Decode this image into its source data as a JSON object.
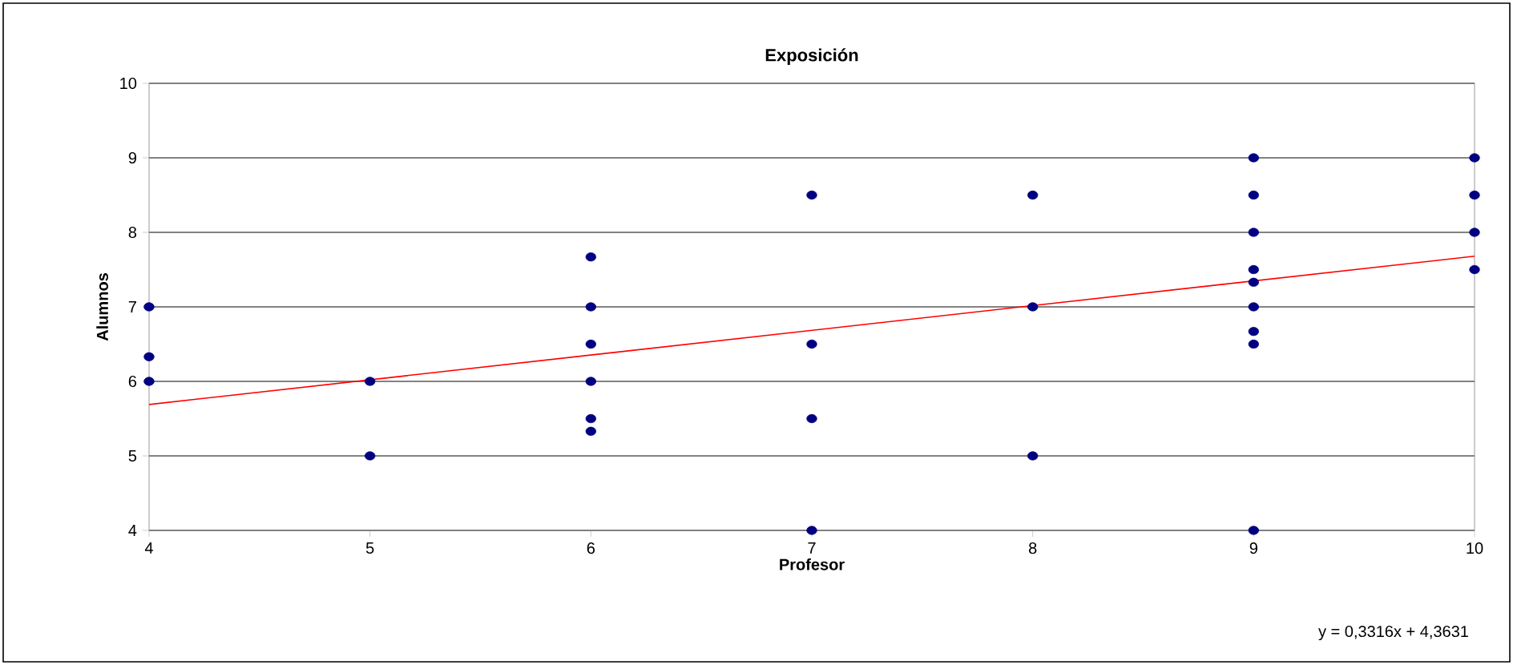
{
  "chart_data": {
    "type": "scatter",
    "title": "Exposición",
    "xlabel": "Profesor",
    "ylabel": "Alumnos",
    "annotations": [
      "y = 0,3316x + 4,3631"
    ],
    "xlim": [
      4,
      10
    ],
    "ylim": [
      4,
      10
    ],
    "xticks": [
      4,
      5,
      6,
      7,
      8,
      9,
      10
    ],
    "yticks": [
      4,
      5,
      6,
      7,
      8,
      9,
      10
    ],
    "grid": "y",
    "series": [
      {
        "color": "#000080",
        "marker": "circle",
        "x": [
          4,
          4,
          4,
          5,
          5,
          6,
          6,
          6,
          6,
          6,
          6,
          7,
          7,
          7,
          7,
          8,
          8,
          8,
          9,
          9,
          9,
          9,
          9,
          9,
          9,
          9,
          9,
          10,
          10,
          10,
          10
        ],
        "values": [
          7,
          6.33,
          6,
          6,
          5,
          7.67,
          7,
          6.5,
          6,
          5.5,
          5.33,
          8.5,
          6.5,
          5.5,
          4,
          8.5,
          7,
          5,
          9,
          8.5,
          8,
          7.5,
          7.33,
          7,
          6.67,
          6.5,
          4,
          9,
          8.5,
          8,
          7.5
        ]
      },
      {
        "type": "line",
        "marker": "none",
        "color": "#ff0000",
        "x": [
          4,
          10
        ],
        "values": [
          5.69,
          7.68
        ]
      }
    ]
  }
}
